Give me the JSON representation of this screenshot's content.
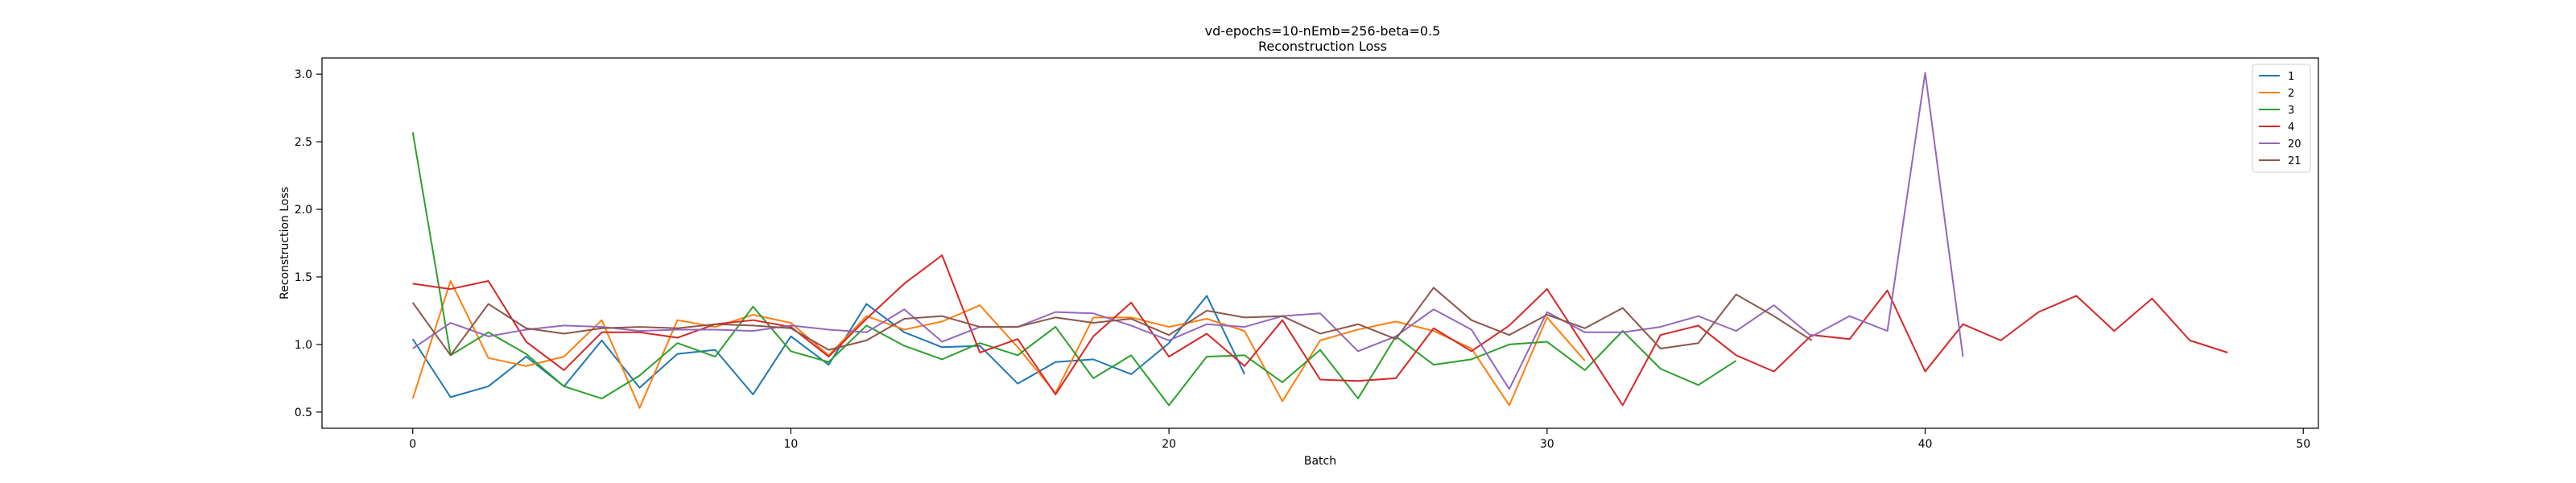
{
  "chart_data": {
    "type": "line",
    "title": "vd-epochs=10-nEmb=256-beta=0.5",
    "subtitle": "Reconstruction Loss",
    "xlabel": "Batch",
    "ylabel": "Reconstruction Loss",
    "xlim": [
      -2.4,
      50.4
    ],
    "ylim": [
      0.38,
      3.12
    ],
    "xticks": [
      0,
      10,
      20,
      30,
      40,
      50
    ],
    "yticks": [
      0.5,
      1.0,
      1.5,
      2.0,
      2.5,
      3.0
    ],
    "xtick_labels": [
      "0",
      "10",
      "20",
      "30",
      "40",
      "50"
    ],
    "ytick_labels": [
      "0.5",
      "1.0",
      "1.5",
      "2.0",
      "2.5",
      "3.0"
    ],
    "legend_position": "top-right",
    "grid": false,
    "series": [
      {
        "name": "1",
        "color": "#1f77b4",
        "values": [
          1.04,
          0.61,
          0.69,
          0.91,
          0.69,
          1.03,
          0.68,
          0.93,
          0.96,
          0.63,
          1.06,
          0.85,
          1.3,
          1.09,
          0.98,
          0.99,
          0.71,
          0.87,
          0.89,
          0.78,
          1.01,
          1.36,
          0.78
        ]
      },
      {
        "name": "2",
        "color": "#ff7f0e",
        "values": [
          0.6,
          1.47,
          0.9,
          0.84,
          0.91,
          1.18,
          0.53,
          1.18,
          1.13,
          1.22,
          1.16,
          0.92,
          1.21,
          1.11,
          1.17,
          1.29,
          0.98,
          0.64,
          1.2,
          1.2,
          1.13,
          1.19,
          1.1,
          0.58,
          1.03,
          1.11,
          1.17,
          1.1,
          0.97,
          0.55,
          1.2,
          0.88
        ]
      },
      {
        "name": "3",
        "color": "#2ca02c",
        "values": [
          2.57,
          0.92,
          1.09,
          0.93,
          0.69,
          0.6,
          0.77,
          1.01,
          0.91,
          1.28,
          0.95,
          0.87,
          1.14,
          0.99,
          0.89,
          1.01,
          0.92,
          1.13,
          0.75,
          0.92,
          0.55,
          0.91,
          0.92,
          0.72,
          0.96,
          0.6,
          1.06,
          0.85,
          0.89,
          1.0,
          1.02,
          0.81,
          1.1,
          0.82,
          0.7,
          0.88
        ]
      },
      {
        "name": "4",
        "color": "#d62728",
        "values": [
          1.45,
          1.41,
          1.47,
          1.02,
          0.81,
          1.09,
          1.09,
          1.05,
          1.15,
          1.18,
          1.13,
          0.91,
          1.19,
          1.45,
          1.66,
          0.94,
          1.04,
          0.63,
          1.06,
          1.31,
          0.91,
          1.08,
          0.84,
          1.18,
          0.74,
          0.73,
          0.75,
          1.12,
          0.95,
          1.14,
          1.41,
          0.98,
          0.55,
          1.07,
          1.14,
          0.92,
          0.8,
          1.07,
          1.04,
          1.4,
          0.8,
          1.15,
          1.03,
          1.24,
          1.36,
          1.1,
          1.34,
          1.03,
          0.94
        ]
      },
      {
        "name": "20",
        "color": "#9467bd",
        "values": [
          0.97,
          1.16,
          1.06,
          1.11,
          1.14,
          1.13,
          1.1,
          1.11,
          1.11,
          1.1,
          1.14,
          1.11,
          1.09,
          1.26,
          1.02,
          1.13,
          1.13,
          1.24,
          1.23,
          1.14,
          1.03,
          1.15,
          1.13,
          1.21,
          1.23,
          0.95,
          1.06,
          1.26,
          1.11,
          0.67,
          1.24,
          1.09,
          1.09,
          1.13,
          1.21,
          1.1,
          1.29,
          1.06,
          1.21,
          1.1,
          3.01,
          0.91
        ]
      },
      {
        "name": "21",
        "color": "#8c564b",
        "values": [
          1.31,
          0.92,
          1.3,
          1.12,
          1.08,
          1.12,
          1.13,
          1.12,
          1.15,
          1.14,
          1.12,
          0.96,
          1.03,
          1.19,
          1.21,
          1.13,
          1.13,
          1.2,
          1.16,
          1.19,
          1.07,
          1.25,
          1.2,
          1.21,
          1.08,
          1.15,
          1.04,
          1.42,
          1.18,
          1.07,
          1.22,
          1.12,
          1.27,
          0.97,
          1.01,
          1.37,
          1.21,
          1.03
        ]
      }
    ]
  }
}
